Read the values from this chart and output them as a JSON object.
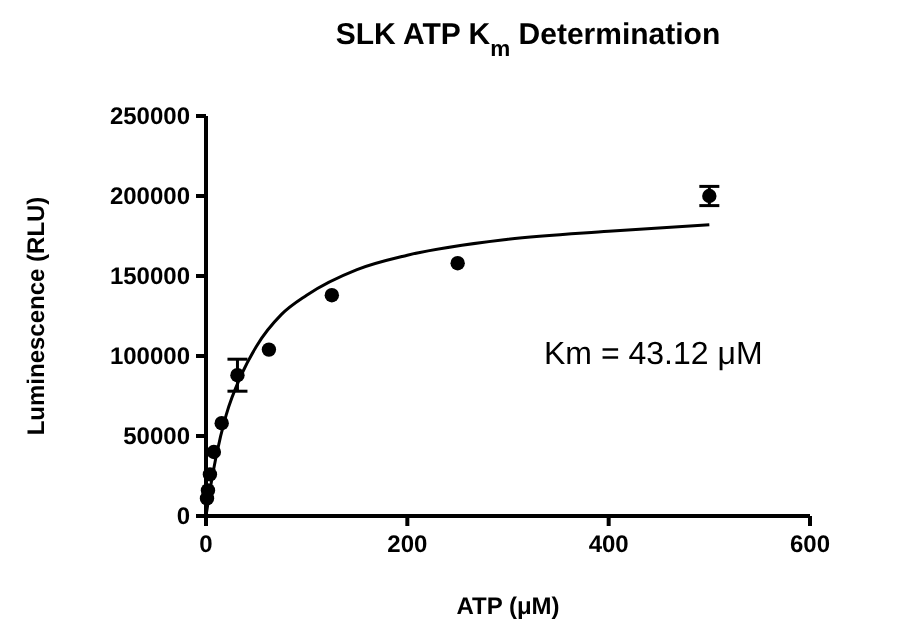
{
  "chart_data": {
    "type": "scatter",
    "title": "SLK ATP K$_{m}$ Determination",
    "xlabel": "ATP (μM)",
    "ylabel": "Luminescence (RLU)",
    "xlim": [
      0,
      600
    ],
    "xticks": [
      0,
      200,
      400,
      600
    ],
    "ylim": [
      0,
      250000
    ],
    "yticks": [
      0,
      50000,
      100000,
      150000,
      200000,
      250000
    ],
    "marker": "circle",
    "series": [
      {
        "color": "#000000",
        "x": [
          0.98,
          1.95,
          3.9,
          7.8,
          15.6,
          31.25,
          62.5,
          125,
          250,
          500
        ],
        "values": [
          11000,
          16000,
          26000,
          40000,
          58000,
          88000,
          104000,
          138000,
          158000,
          200000
        ],
        "errors": [
          null,
          null,
          null,
          null,
          null,
          10000,
          null,
          null,
          null,
          6000
        ]
      },
      {
        "type": "line",
        "color": "#000000",
        "marker": "none",
        "line_style": "solid",
        "x": [
          0,
          5,
          10,
          20,
          35,
          50,
          75,
          100,
          150,
          200,
          300,
          400,
          500
        ],
        "values": [
          0,
          20000,
          37000,
          63000,
          88000,
          106000,
          126000,
          138000,
          154000,
          163000,
          173000,
          178000,
          182000
        ]
      }
    ],
    "annotations": [
      "Km = 43.12 μM"
    ]
  }
}
